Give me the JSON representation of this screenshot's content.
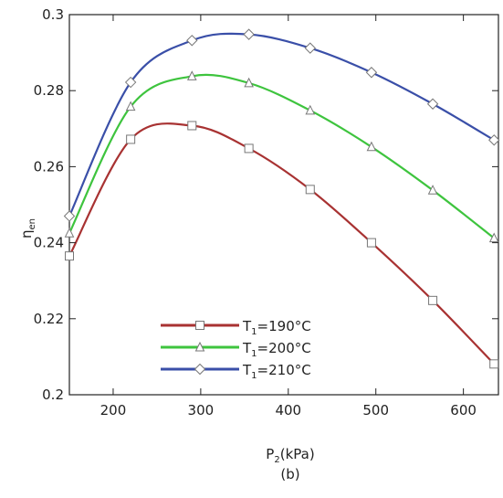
{
  "chart_data": {
    "type": "line",
    "ylabel_main": "η",
    "ylabel_sub": "en",
    "xlabel_main": "P",
    "xlabel_sub": "2",
    "xlabel_rest": "(kPa)",
    "caption": "(b)",
    "xlim": [
      150,
      640
    ],
    "ylim": [
      0.2,
      0.3
    ],
    "xticks": [
      200,
      300,
      400,
      500,
      600
    ],
    "yticks": [
      0.2,
      0.22,
      0.24,
      0.26,
      0.28,
      0.3
    ],
    "ytick_labels": [
      "0.2",
      "0.22",
      "0.24",
      "0.26",
      "0.28",
      "0.3"
    ],
    "grid": false,
    "legend_position": "lower-left",
    "series": [
      {
        "name_main": "T",
        "name_sub": "1",
        "name_rest": "=190°C",
        "color": "#a83232",
        "marker": "square",
        "x": [
          150,
          220,
          290,
          355,
          425,
          495,
          565,
          635
        ],
        "y": [
          0.2365,
          0.2672,
          0.2708,
          0.2648,
          0.254,
          0.24,
          0.2248,
          0.2081
        ]
      },
      {
        "name_main": "T",
        "name_sub": "1",
        "name_rest": "=200°C",
        "color": "#3ec43e",
        "marker": "triangle",
        "x": [
          150,
          220,
          290,
          355,
          425,
          495,
          565,
          635
        ],
        "y": [
          0.2425,
          0.2758,
          0.2838,
          0.282,
          0.2748,
          0.2652,
          0.2538,
          0.2412
        ]
      },
      {
        "name_main": "T",
        "name_sub": "1",
        "name_rest": "=210°C",
        "color": "#3a4fa8",
        "marker": "diamond",
        "x": [
          150,
          220,
          290,
          355,
          425,
          495,
          565,
          635
        ],
        "y": [
          0.247,
          0.2822,
          0.2932,
          0.2948,
          0.2912,
          0.2848,
          0.2765,
          0.267
        ]
      }
    ]
  }
}
